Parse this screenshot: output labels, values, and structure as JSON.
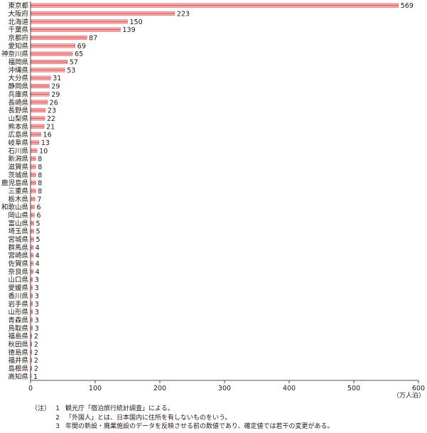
{
  "chart_data": {
    "type": "bar",
    "orientation": "horizontal",
    "categories": [
      "東京都",
      "大阪府",
      "北海道",
      "千葉県",
      "京都府",
      "愛知県",
      "神奈川県",
      "福岡県",
      "沖縄県",
      "大分県",
      "静岡県",
      "兵庫県",
      "長崎県",
      "長野県",
      "山梨県",
      "熊本県",
      "広島県",
      "岐阜県",
      "石川県",
      "新潟県",
      "滋賀県",
      "茨城県",
      "鹿児島県",
      "三重県",
      "栃木県",
      "和歌山県",
      "岡山県",
      "富山県",
      "埼玉県",
      "宮城県",
      "群馬県",
      "宮崎県",
      "佐賀県",
      "奈良県",
      "山口県",
      "愛媛県",
      "香川県",
      "岩手県",
      "山形県",
      "青森県",
      "鳥取県",
      "福島県",
      "秋田県",
      "徳島県",
      "福井県",
      "島根県",
      "高知県"
    ],
    "values": [
      569,
      223,
      150,
      139,
      87,
      69,
      65,
      57,
      53,
      31,
      29,
      29,
      26,
      23,
      22,
      21,
      16,
      13,
      10,
      8,
      8,
      8,
      8,
      8,
      7,
      6,
      6,
      5,
      5,
      5,
      4,
      4,
      4,
      4,
      3,
      3,
      3,
      3,
      3,
      3,
      3,
      2,
      2,
      2,
      2,
      2,
      1
    ],
    "xlim": [
      0,
      600
    ],
    "xticks": [
      "0",
      "100",
      "200",
      "300",
      "400",
      "500",
      "600"
    ],
    "unit_label": "（万人泊）",
    "bar_color": "#f4a7a7",
    "bar_stripe_color": "#c94f4f",
    "grid": false
  },
  "notes": [
    {
      "tag": "（注）",
      "num": "1",
      "text": "観光庁「宿泊旅行統計調査」による。"
    },
    {
      "tag": "",
      "num": "2",
      "text": "「外国人」とは、日本国内に住所を有しないものをいう。"
    },
    {
      "tag": "",
      "num": "3",
      "text": "年間の新設・廃業施設のデータを反映させる前の数値であり、確定値では若干の変更がある。"
    }
  ]
}
